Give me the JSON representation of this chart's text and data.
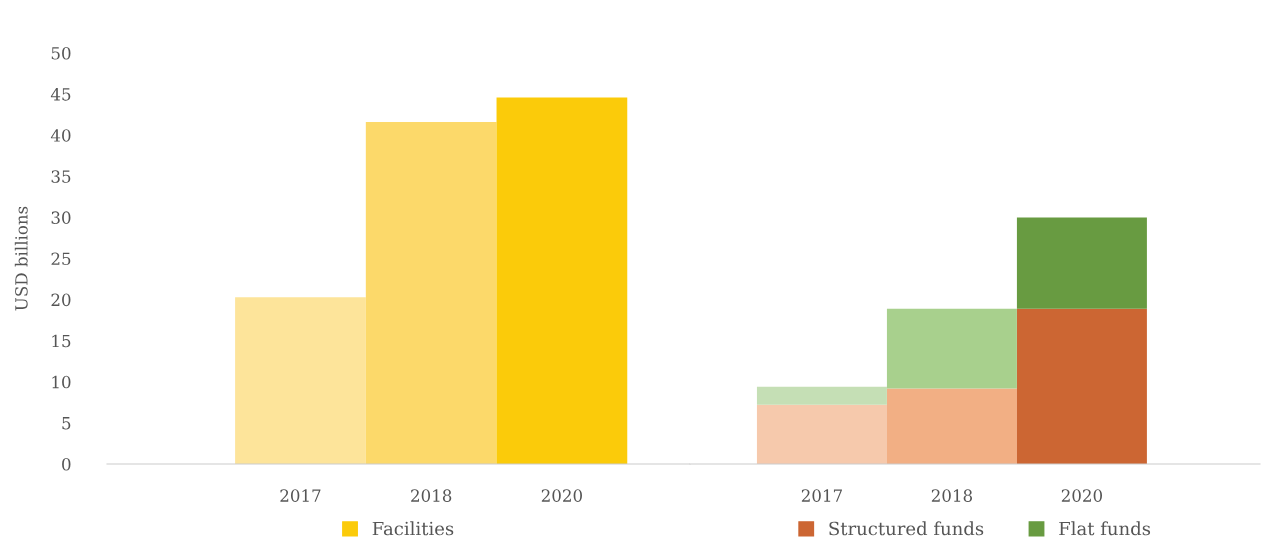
{
  "chart_data": [
    {
      "type": "bar",
      "ylabel": "USD billions",
      "categories": [
        "2017",
        "2018",
        "2020"
      ],
      "ylim": [
        0,
        50
      ],
      "yticks": [
        0,
        5,
        10,
        15,
        20,
        25,
        30,
        35,
        40,
        45,
        50
      ],
      "legend": "bottom",
      "series": [
        {
          "name": "Facilities",
          "color": "#fbcb0a",
          "colors": [
            "#fde49a",
            "#fcd96a",
            "#fbcb0a"
          ],
          "values": [
            20.3,
            41.6,
            44.6
          ]
        }
      ]
    },
    {
      "type": "bar",
      "stacked": true,
      "categories": [
        "2017",
        "2018",
        "2020"
      ],
      "ylim": [
        0,
        50
      ],
      "yticks": [
        0,
        5,
        10,
        15,
        20,
        25,
        30,
        35,
        40,
        45,
        50
      ],
      "tick_labels": "x",
      "legend": "bottom",
      "series": [
        {
          "name": "Structured funds",
          "color": "#cc6633",
          "colors": [
            "#f6c9ac",
            "#f2af84",
            "#cc6633"
          ],
          "values": [
            7.2,
            9.2,
            18.9
          ]
        },
        {
          "name": "Flat funds",
          "color": "#689b41",
          "colors": [
            "#c5dfb5",
            "#a8d08d",
            "#689b41"
          ],
          "values": [
            2.2,
            9.7,
            11.1
          ]
        }
      ]
    }
  ]
}
